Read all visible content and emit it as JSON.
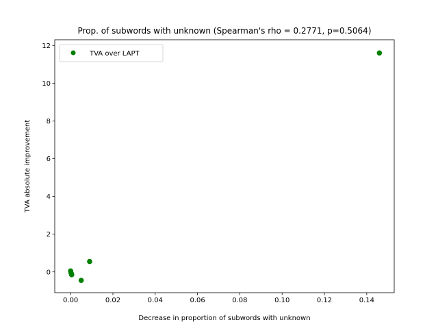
{
  "chart_data": {
    "type": "scatter",
    "title": "Prop. of subwords with unknown (Spearman's rho = 0.2771, p=0.5064)",
    "xlabel": "Decrease in proportion of subwords with unknown",
    "ylabel": "TVA absolute improvement",
    "xlim": [
      -0.0075,
      0.153
    ],
    "ylim": [
      -1.1,
      12.3
    ],
    "xticks": [
      0.0,
      0.02,
      0.04,
      0.06,
      0.08,
      0.1,
      0.12,
      0.14
    ],
    "xtick_labels": [
      "0.00",
      "0.02",
      "0.04",
      "0.06",
      "0.08",
      "0.10",
      "0.12",
      "0.14"
    ],
    "yticks": [
      0,
      2,
      4,
      6,
      8,
      10,
      12
    ],
    "ytick_labels": [
      "0",
      "2",
      "4",
      "6",
      "8",
      "10",
      "12"
    ],
    "grid": false,
    "legend_position": "top-left",
    "series": [
      {
        "name": "TVA over LAPT",
        "color": "#008000",
        "points": [
          {
            "x": 0.0,
            "y": 0.05
          },
          {
            "x": 0.0002,
            "y": -0.05
          },
          {
            "x": 0.0004,
            "y": -0.1
          },
          {
            "x": 0.0005,
            "y": -0.15
          },
          {
            "x": 0.005,
            "y": -0.45
          },
          {
            "x": 0.009,
            "y": 0.55
          },
          {
            "x": 0.146,
            "y": 11.6
          }
        ]
      }
    ]
  }
}
